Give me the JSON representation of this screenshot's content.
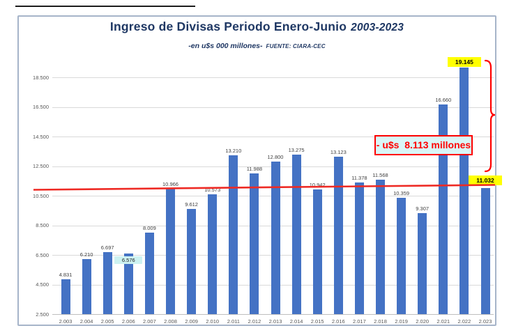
{
  "title": {
    "main": "Ingreso de Divisas Periodo Enero-Junio",
    "period": "2003-2023"
  },
  "subtitle": {
    "units": "-en u$s 000 millones-",
    "source": "FUENTE: CIARA-CEC"
  },
  "annotation": {
    "difference_label": "- u$s  8.113 millones"
  },
  "colors": {
    "bar": "#4472c4",
    "title_navy": "#1f3864",
    "red": "#ff0000",
    "trend_red": "#ee2a24",
    "gridline": "#d9d9d9",
    "axis_text": "#595959",
    "cyan_highlight": "#cdf2f1",
    "yellow_highlight": "#ffff00",
    "frame_border": "#a6b4c9"
  },
  "chart_data": {
    "type": "bar",
    "title": "Ingreso de Divisas Periodo Enero-Junio 2003-2023",
    "subtitle": "-en u$s 000 millones- FUENTE: CIARA-CEC",
    "xlabel": "",
    "ylabel": "",
    "ylim": [
      2500,
      19500
    ],
    "grid": true,
    "legend": false,
    "categories": [
      "2.003",
      "2.004",
      "2.005",
      "2.006",
      "2.007",
      "2.008",
      "2.009",
      "2.010",
      "2.011",
      "2.012",
      "2.013",
      "2.014",
      "2.015",
      "2.016",
      "2.017",
      "2.018",
      "2.019",
      "2.020",
      "2.021",
      "2.022",
      "2.023"
    ],
    "values": [
      4831,
      6210,
      6697,
      6576,
      8009,
      10966,
      9612,
      10573,
      13210,
      11988,
      12800,
      13275,
      10942,
      13123,
      11378,
      11568,
      10359,
      9307,
      16660,
      19145,
      11032
    ],
    "value_labels": [
      "4.831",
      "6.210",
      "6.697",
      "6.576",
      "8.009",
      "10.966",
      "9.612",
      "10.573",
      "13.210",
      "11.988",
      "12.800",
      "13.275",
      "10.942",
      "13.123",
      "11.378",
      "11.568",
      "10.359",
      "9.307",
      "16.660",
      "19.145",
      "11.032"
    ],
    "y_ticks": [
      {
        "value": 2500,
        "label": "2.500"
      },
      {
        "value": 4500,
        "label": "4.500"
      },
      {
        "value": 6500,
        "label": "6.500"
      },
      {
        "value": 8500,
        "label": "8.500"
      },
      {
        "value": 10500,
        "label": "10.500"
      },
      {
        "value": 12500,
        "label": "12.500"
      },
      {
        "value": 14500,
        "label": "14.500"
      },
      {
        "value": 16500,
        "label": "16.500"
      },
      {
        "value": 18500,
        "label": "18.500"
      }
    ],
    "highlight_cyan_index": 3,
    "highlight_yellow_indices": [
      19,
      20
    ],
    "annotations": {
      "reference_line_value": 11032,
      "bracket_from_value": 19145,
      "bracket_to_value": 11032,
      "difference_text": "- u$s  8.113 millones"
    }
  }
}
